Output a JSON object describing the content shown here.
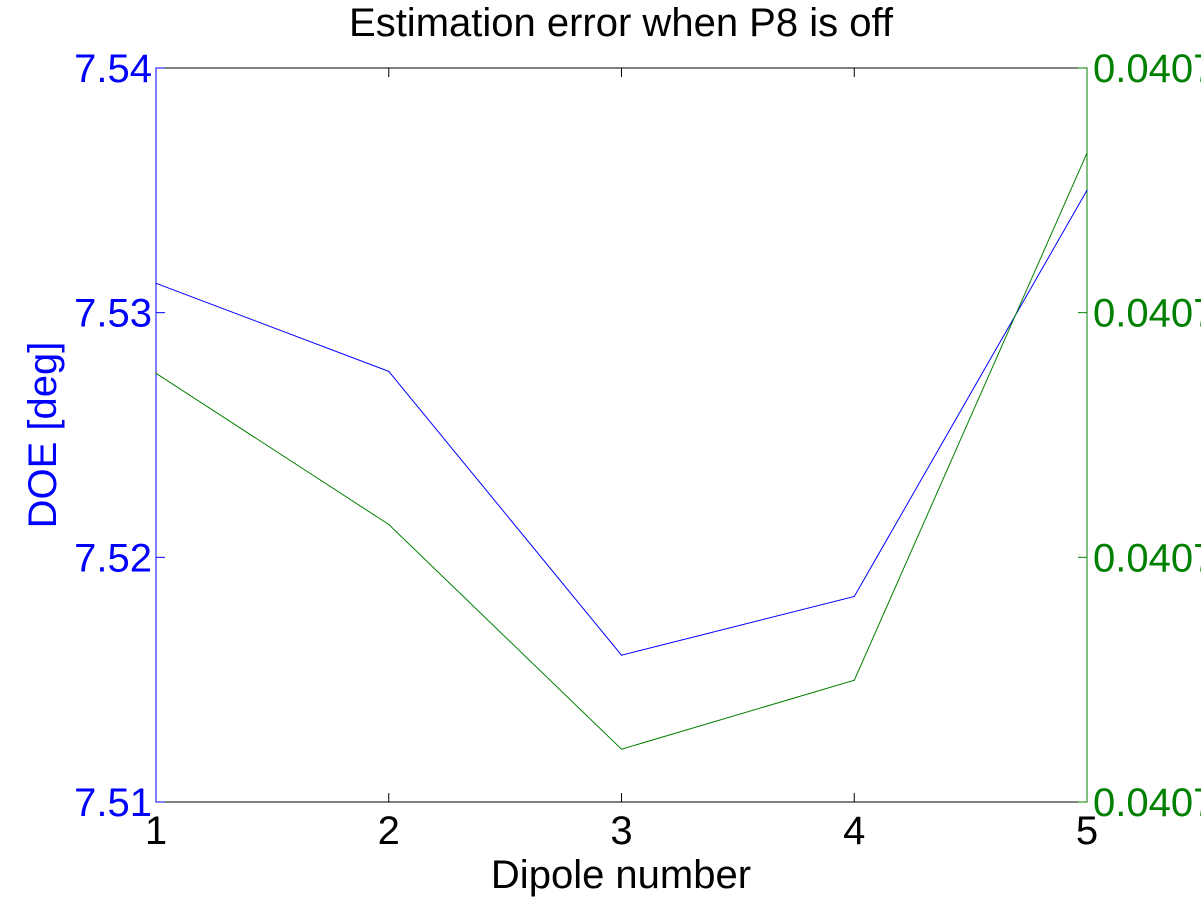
{
  "chart_data": {
    "type": "line",
    "title": "Estimation error when P8 is off",
    "xlabel": "Dipole number",
    "ylabel_left": "DOE [deg]",
    "ylabel_right": "",
    "x": [
      1,
      2,
      3,
      4,
      5
    ],
    "xlim": [
      1,
      5
    ],
    "x_ticks": [
      "1",
      "2",
      "3",
      "4",
      "5"
    ],
    "ylim_left": [
      7.51,
      7.54
    ],
    "y_ticks_left": [
      "7.51",
      "7.52",
      "7.53",
      "7.54"
    ],
    "y_ticks_right": [
      "0.0407",
      "0.0407",
      "0.0407",
      "0.0407"
    ],
    "grid": false,
    "series": [
      {
        "axis": "left",
        "color": "#0000ff",
        "values": [
          7.5312,
          7.5276,
          7.516,
          7.5184,
          7.535
        ]
      },
      {
        "axis": "right",
        "color": "#008000",
        "values_relative": [
          0.584,
          0.378,
          0.072,
          0.166,
          0.884
        ]
      }
    ]
  },
  "colors": {
    "left_axis": "#0000ff",
    "right_axis": "#008000",
    "frame": "#000000"
  }
}
